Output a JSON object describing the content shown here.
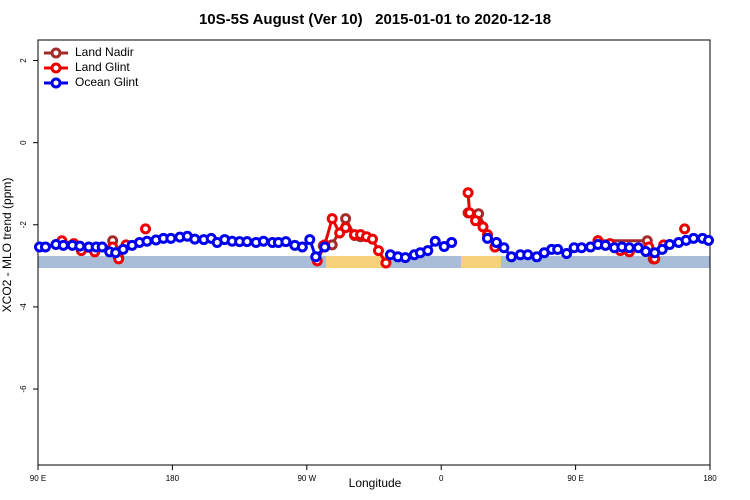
{
  "chart_data": {
    "type": "line",
    "title": "10S-5S August (Ver 10)   2015-01-01 to 2020-12-18",
    "x_label": "Longitude",
    "y_label": "XCO2 - MLO trend (ppm)",
    "xlim": [
      90,
      540
    ],
    "xticks": [
      {
        "value": 90,
        "label": "90 E"
      },
      {
        "value": 180,
        "label": "180"
      },
      {
        "value": 270,
        "label": "90 W"
      },
      {
        "value": 360,
        "label": "0"
      },
      {
        "value": 450,
        "label": "90 E"
      },
      {
        "value": 540,
        "label": "180"
      }
    ],
    "ylim": [
      -7.85,
      2.5
    ],
    "yticks": [
      2,
      0,
      -2,
      -4,
      -6
    ],
    "legend": "top-left",
    "series": [
      {
        "name": "Land Nadir",
        "color": "#a52a2a",
        "x": [
          140,
          144,
          null,
          281,
          287,
          296,
          302,
          306,
          null,
          378,
          385,
          396,
          null,
          465,
          498,
          502
        ],
        "values": [
          -2.39,
          -2.8,
          null,
          -2.51,
          -2.49,
          -1.85,
          -2.26,
          -2.29,
          null,
          -1.71,
          -1.73,
          -2.54,
          null,
          -2.39,
          -2.39,
          -2.83
        ]
      },
      {
        "name": "Land Glint",
        "color": "#ee0000",
        "x": [
          106,
          114,
          119,
          128,
          140,
          144,
          149,
          null,
          162,
          null,
          277,
          282,
          287,
          292,
          296,
          302,
          306,
          310,
          314,
          318,
          323,
          null,
          378,
          379,
          383,
          388,
          391,
          396,
          null,
          465,
          473,
          480,
          486,
          499,
          503,
          509,
          null,
          523
        ],
        "values": [
          -2.39,
          -2.46,
          -2.63,
          -2.66,
          -2.54,
          -2.83,
          -2.49,
          null,
          -2.1,
          null,
          -2.88,
          -2.49,
          -1.85,
          -2.2,
          -2.07,
          -2.24,
          -2.24,
          -2.29,
          -2.35,
          -2.63,
          -2.93,
          null,
          -1.22,
          -1.71,
          -1.9,
          -2.05,
          -2.24,
          -2.54,
          null,
          -2.39,
          -2.46,
          -2.63,
          -2.66,
          -2.54,
          -2.83,
          -2.49,
          null,
          -2.1
        ]
      },
      {
        "name": "Ocean Glint",
        "color": "#0000ee",
        "x": [
          91,
          95,
          102,
          107,
          113,
          118,
          124,
          129,
          133,
          138,
          142,
          147,
          153,
          158,
          163,
          169,
          174,
          179,
          185,
          190,
          195,
          201,
          206,
          210,
          215,
          220,
          225,
          230,
          236,
          241,
          247,
          251,
          256,
          262,
          267,
          272,
          276,
          282,
          null,
          326,
          331,
          336,
          342,
          346,
          351,
          356,
          362,
          367,
          null,
          391,
          397,
          402,
          407,
          413,
          418,
          424,
          429,
          434,
          438,
          444,
          449,
          454,
          460,
          465,
          470,
          476,
          481,
          486,
          492,
          497,
          503,
          508,
          513,
          519,
          524,
          529,
          535,
          539
        ],
        "values": [
          -2.54,
          -2.54,
          -2.48,
          -2.5,
          -2.5,
          -2.52,
          -2.54,
          -2.54,
          -2.54,
          -2.66,
          -2.68,
          -2.6,
          -2.5,
          -2.43,
          -2.4,
          -2.37,
          -2.33,
          -2.33,
          -2.3,
          -2.28,
          -2.35,
          -2.36,
          -2.33,
          -2.43,
          -2.36,
          -2.4,
          -2.41,
          -2.41,
          -2.43,
          -2.4,
          -2.43,
          -2.43,
          -2.41,
          -2.5,
          -2.54,
          -2.36,
          -2.78,
          -2.54,
          null,
          -2.73,
          -2.78,
          -2.8,
          -2.73,
          -2.68,
          -2.63,
          -2.4,
          -2.53,
          -2.43,
          null,
          -2.33,
          -2.43,
          -2.56,
          -2.78,
          -2.73,
          -2.73,
          -2.78,
          -2.68,
          -2.6,
          -2.6,
          -2.7,
          -2.56,
          -2.56,
          -2.54,
          -2.48,
          -2.5,
          -2.56,
          -2.54,
          -2.56,
          -2.56,
          -2.65,
          -2.68,
          -2.6,
          -2.48,
          -2.43,
          -2.38,
          -2.33,
          -2.33,
          -2.38
        ]
      }
    ]
  }
}
